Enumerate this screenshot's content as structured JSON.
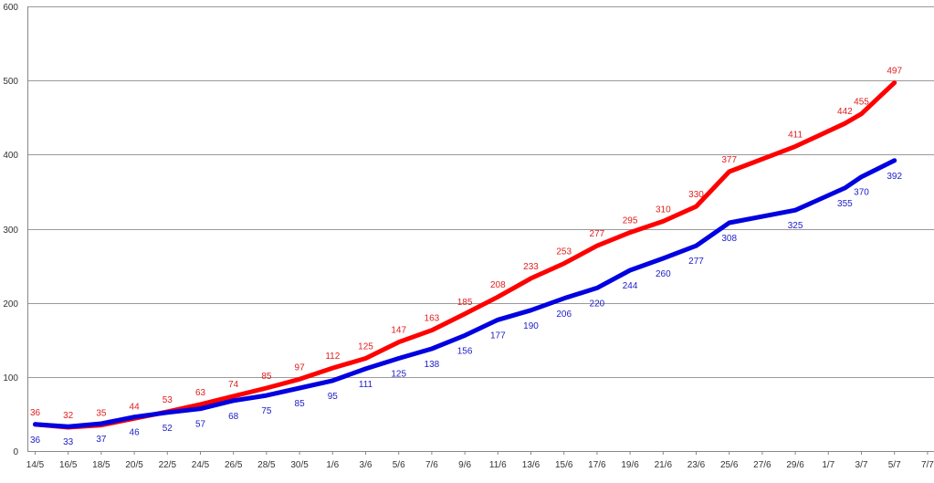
{
  "chart_data": {
    "type": "line",
    "title": "",
    "xlabel": "",
    "ylabel": "",
    "ylim": [
      0,
      600
    ],
    "y_ticks": [
      0,
      100,
      200,
      300,
      400,
      500,
      600
    ],
    "grid": true,
    "legend": "none",
    "x_ticks": [
      "14/5",
      "16/5",
      "18/5",
      "20/5",
      "22/5",
      "24/5",
      "26/5",
      "28/5",
      "30/5",
      "1/6",
      "3/6",
      "5/6",
      "7/6",
      "9/6",
      "11/6",
      "13/6",
      "15/6",
      "17/6",
      "19/6",
      "21/6",
      "23/6",
      "25/6",
      "27/6",
      "29/6",
      "1/7",
      "3/7",
      "5/7",
      "7/7"
    ],
    "series": [
      {
        "color": "#ff0000",
        "label_color": "#e02020",
        "points": [
          [
            "14/5",
            36
          ],
          [
            "16/5",
            32
          ],
          [
            "18/5",
            35
          ],
          [
            "20/5",
            44
          ],
          [
            "22/5",
            53
          ],
          [
            "24/5",
            63
          ],
          [
            "26/5",
            74
          ],
          [
            "28/5",
            85
          ],
          [
            "30/5",
            97
          ],
          [
            "1/6",
            112
          ],
          [
            "3/6",
            125
          ],
          [
            "5/6",
            147
          ],
          [
            "7/6",
            163
          ],
          [
            "9/6",
            185
          ],
          [
            "11/6",
            208
          ],
          [
            "13/6",
            233
          ],
          [
            "15/6",
            253
          ],
          [
            "17/6",
            277
          ],
          [
            "19/6",
            295
          ],
          [
            "21/6",
            310
          ],
          [
            "23/6",
            330
          ],
          [
            "25/6",
            377
          ],
          [
            "29/6",
            411
          ],
          [
            "2/7",
            442
          ],
          [
            "3/7",
            455
          ],
          [
            "5/7",
            497
          ]
        ]
      },
      {
        "color": "#0000e0",
        "label_color": "#2020c8",
        "points": [
          [
            "14/5",
            36
          ],
          [
            "16/5",
            33
          ],
          [
            "18/5",
            37
          ],
          [
            "20/5",
            46
          ],
          [
            "22/5",
            52
          ],
          [
            "24/5",
            57
          ],
          [
            "26/5",
            68
          ],
          [
            "28/5",
            75
          ],
          [
            "30/5",
            85
          ],
          [
            "1/6",
            95
          ],
          [
            "3/6",
            111
          ],
          [
            "5/6",
            125
          ],
          [
            "7/6",
            138
          ],
          [
            "9/6",
            156
          ],
          [
            "11/6",
            177
          ],
          [
            "13/6",
            190
          ],
          [
            "15/6",
            206
          ],
          [
            "17/6",
            220
          ],
          [
            "19/6",
            244
          ],
          [
            "21/6",
            260
          ],
          [
            "23/6",
            277
          ],
          [
            "25/6",
            308
          ],
          [
            "29/6",
            325
          ],
          [
            "2/7",
            355
          ],
          [
            "3/7",
            370
          ],
          [
            "5/7",
            392
          ]
        ]
      }
    ]
  }
}
